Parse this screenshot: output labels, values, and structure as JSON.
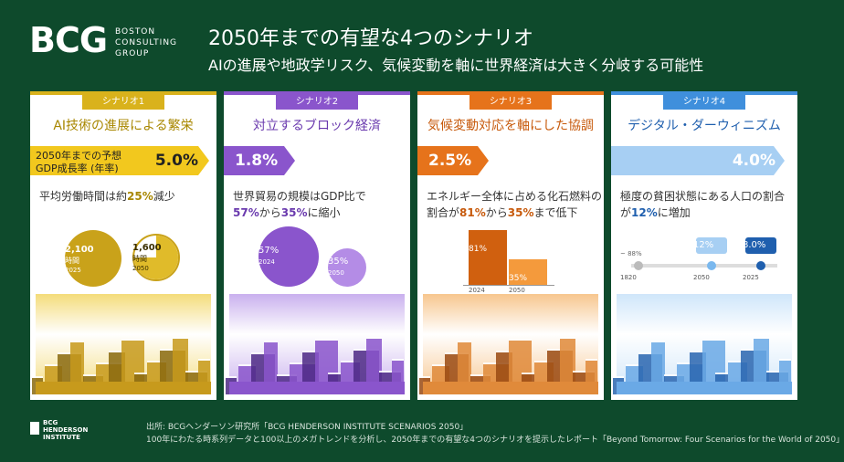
{
  "header": {
    "logo": "BCG",
    "logo_lines": [
      "BOSTON",
      "CONSULTING",
      "GROUP"
    ],
    "title": "2050年までの有望な4つのシナリオ",
    "subtitle": "AIの進展や地政学リスク、気候変動を軸に世界経済は大きく分岐する可能性"
  },
  "cards": [
    {
      "tag": "シナリオ1",
      "heading": "AI技術の進展による繁栄",
      "growth_label": [
        "2050年までの予想",
        "GDP成長率 (年率)"
      ],
      "growth": "5.0%",
      "desc": [
        [
          "平均労働時間は約",
          "25%",
          "減少"
        ]
      ],
      "figure": [
        {
          "value": "2,100",
          "unit": "時間",
          "year": "2025"
        },
        {
          "value": "1,600",
          "unit": "時間",
          "year": "2050"
        }
      ]
    },
    {
      "tag": "シナリオ2",
      "heading": "対立するブロック経済",
      "growth": "1.8%",
      "desc": [
        [
          "世界貿易の規模はGDP比で"
        ],
        [
          "57%",
          "から",
          "35%",
          "に縮小"
        ]
      ],
      "figure": [
        {
          "value": "57%",
          "year": "2024"
        },
        {
          "value": "35%",
          "year": "2050"
        }
      ]
    },
    {
      "tag": "シナリオ3",
      "heading": "気候変動対応を軸にした協調",
      "growth": "2.5%",
      "desc": [
        [
          "エネルギー全体に占める化石燃料の"
        ],
        [
          "割合が",
          "81%",
          "から",
          "35%",
          "まで低下"
        ]
      ],
      "figure": [
        {
          "value": "81%",
          "year": "2024"
        },
        {
          "value": "35%",
          "year": "2050"
        }
      ]
    },
    {
      "tag": "シナリオ4",
      "heading": "デジタル・ダーウィニズム",
      "growth": "4.0%",
      "desc": [
        [
          "極度の貧困状態にある人口の割合"
        ],
        [
          "が",
          "12%",
          "に増加"
        ]
      ],
      "figure": [
        {
          "value": "~ 88%",
          "year": "1820"
        },
        {
          "value": "12%",
          "year": "2050"
        },
        {
          "value": "8.0%",
          "year": "2025"
        }
      ]
    }
  ],
  "footer": {
    "logo_lines": [
      "BCG",
      "HENDERSON",
      "INSTITUTE"
    ],
    "source": [
      "出所: BCGヘンダーソン研究所「BCG HENDERSON INSTITUTE SCENARIOS 2050」",
      "100年にわたる時系列データと100以上のメガトレンドを分析し、2050年までの有望な4つのシナリオを提示したレポート「Beyond Tomorrow: Four Scenarios for the World of 2050」"
    ]
  }
}
